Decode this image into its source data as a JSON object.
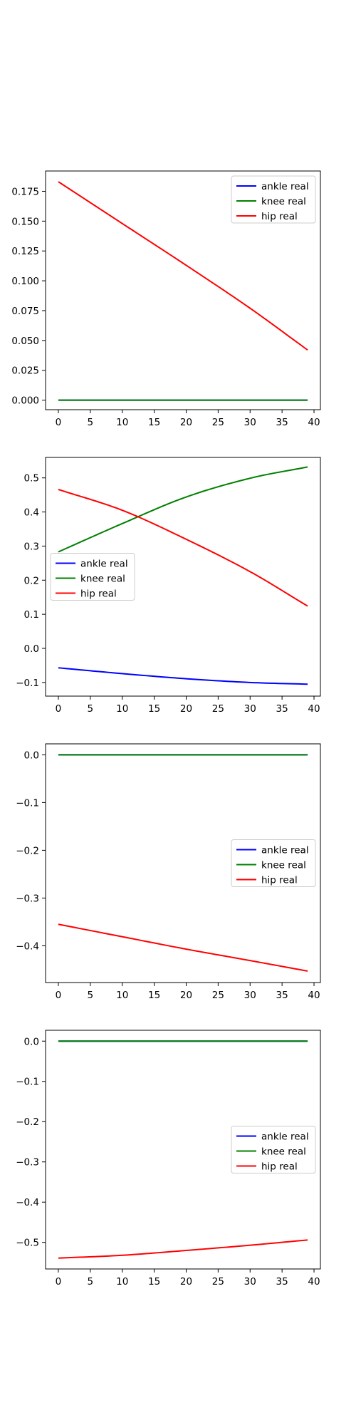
{
  "chart_data": [
    {
      "type": "line",
      "xlim": [
        -2,
        41
      ],
      "ylim": [
        -0.008,
        0.192
      ],
      "xticks": [
        0,
        5,
        10,
        15,
        20,
        25,
        30,
        35,
        40
      ],
      "yticks": [
        0.0,
        0.025,
        0.05,
        0.075,
        0.1,
        0.125,
        0.15,
        0.175
      ],
      "ytick_labels": [
        "0.000",
        "0.025",
        "0.050",
        "0.075",
        "0.100",
        "0.125",
        "0.150",
        "0.175"
      ],
      "legend_position": "top-right",
      "series": [
        {
          "name": "ankle real",
          "color": "#0000ff",
          "x_range": [
            0,
            39
          ],
          "points": [
            [
              0,
              0
            ],
            [
              39,
              0
            ]
          ]
        },
        {
          "name": "knee real",
          "color": "#008000",
          "x_range": [
            0,
            39
          ],
          "points": [
            [
              0,
              0
            ],
            [
              39,
              0
            ]
          ]
        },
        {
          "name": "hip real",
          "color": "#ff0000",
          "x_range": [
            0,
            39
          ],
          "points": [
            [
              0,
              0.183
            ],
            [
              10,
              0.148
            ],
            [
              20,
              0.113
            ],
            [
              30,
              0.077
            ],
            [
              39,
              0.042
            ]
          ]
        }
      ]
    },
    {
      "type": "line",
      "xlim": [
        -2,
        41
      ],
      "ylim": [
        -0.14,
        0.56
      ],
      "xticks": [
        0,
        5,
        10,
        15,
        20,
        25,
        30,
        35,
        40
      ],
      "yticks": [
        -0.1,
        0.0,
        0.1,
        0.2,
        0.3,
        0.4,
        0.5
      ],
      "ytick_labels": [
        "−0.1",
        "0.0",
        "0.1",
        "0.2",
        "0.3",
        "0.4",
        "0.5"
      ],
      "legend_position": "center-left",
      "series": [
        {
          "name": "ankle real",
          "color": "#0000ff",
          "x_range": [
            0,
            39
          ],
          "points": [
            [
              0,
              -0.057
            ],
            [
              10,
              -0.074
            ],
            [
              20,
              -0.089
            ],
            [
              30,
              -0.1
            ],
            [
              39,
              -0.105
            ]
          ]
        },
        {
          "name": "knee real",
          "color": "#008000",
          "x_range": [
            0,
            39
          ],
          "points": [
            [
              0,
              0.283
            ],
            [
              10,
              0.366
            ],
            [
              20,
              0.444
            ],
            [
              30,
              0.499
            ],
            [
              39,
              0.532
            ]
          ]
        },
        {
          "name": "hip real",
          "color": "#ff0000",
          "x_range": [
            0,
            39
          ],
          "points": [
            [
              0,
              0.466
            ],
            [
              10,
              0.405
            ],
            [
              20,
              0.32
            ],
            [
              30,
              0.225
            ],
            [
              39,
              0.124
            ]
          ]
        }
      ]
    },
    {
      "type": "line",
      "xlim": [
        -2,
        41
      ],
      "ylim": [
        -0.477,
        0.023
      ],
      "xticks": [
        0,
        5,
        10,
        15,
        20,
        25,
        30,
        35,
        40
      ],
      "yticks": [
        -0.4,
        -0.3,
        -0.2,
        -0.1,
        0.0
      ],
      "ytick_labels": [
        "−0.4",
        "−0.3",
        "−0.2",
        "−0.1",
        "0.0"
      ],
      "legend_position": "center-right",
      "series": [
        {
          "name": "ankle real",
          "color": "#0000ff",
          "x_range": [
            0,
            39
          ],
          "points": [
            [
              0,
              0
            ],
            [
              39,
              0
            ]
          ]
        },
        {
          "name": "knee real",
          "color": "#008000",
          "x_range": [
            0,
            39
          ],
          "points": [
            [
              0,
              0
            ],
            [
              39,
              0
            ]
          ]
        },
        {
          "name": "hip real",
          "color": "#ff0000",
          "x_range": [
            0,
            39
          ],
          "points": [
            [
              0,
              -0.355
            ],
            [
              10,
              -0.381
            ],
            [
              20,
              -0.407
            ],
            [
              30,
              -0.431
            ],
            [
              39,
              -0.453
            ]
          ]
        }
      ]
    },
    {
      "type": "line",
      "xlim": [
        -2,
        41
      ],
      "ylim": [
        -0.566,
        0.027
      ],
      "xticks": [
        0,
        5,
        10,
        15,
        20,
        25,
        30,
        35,
        40
      ],
      "yticks": [
        -0.5,
        -0.4,
        -0.3,
        -0.2,
        -0.1,
        0.0
      ],
      "ytick_labels": [
        "−0.5",
        "−0.4",
        "−0.3",
        "−0.2",
        "−0.1",
        "0.0"
      ],
      "legend_position": "center-right",
      "series": [
        {
          "name": "ankle real",
          "color": "#0000ff",
          "x_range": [
            0,
            39
          ],
          "points": [
            [
              0,
              0
            ],
            [
              39,
              0
            ]
          ]
        },
        {
          "name": "knee real",
          "color": "#008000",
          "x_range": [
            0,
            39
          ],
          "points": [
            [
              0,
              0
            ],
            [
              39,
              0
            ]
          ]
        },
        {
          "name": "hip real",
          "color": "#ff0000",
          "x_range": [
            0,
            39
          ],
          "points": [
            [
              0,
              -0.539
            ],
            [
              10,
              -0.532
            ],
            [
              20,
              -0.52
            ],
            [
              30,
              -0.507
            ],
            [
              39,
              -0.494
            ]
          ]
        }
      ]
    }
  ]
}
